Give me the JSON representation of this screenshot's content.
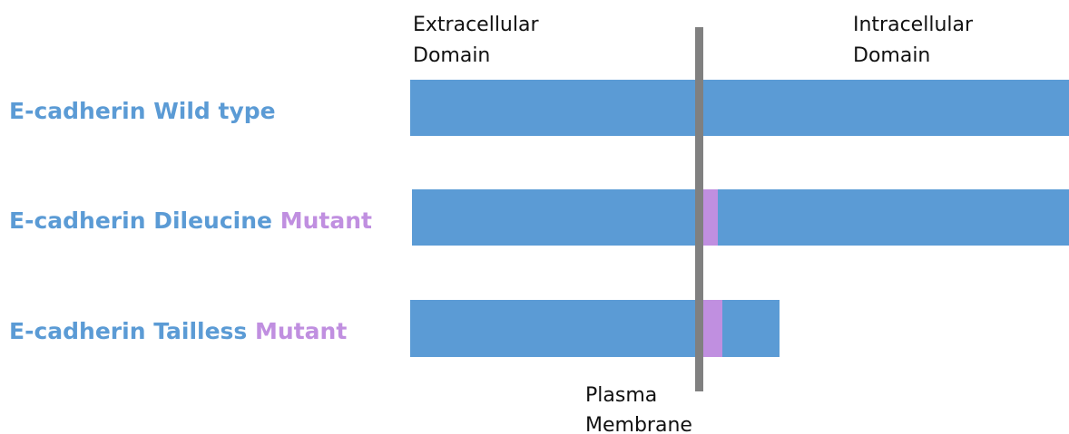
{
  "header": {
    "extracellular": [
      "Extracellular",
      "Domain"
    ],
    "intracellular": [
      "Intracellular",
      "Domain"
    ],
    "membrane": [
      "Plasma",
      "Membrane"
    ]
  },
  "rows": [
    {
      "name": "E-cadherin Wild type"
    },
    {
      "name": "E-cadherin Dileucine",
      "mutant": "Mutant"
    },
    {
      "name": "E-cadherin Tailless",
      "mutant": "Mutant"
    }
  ]
}
